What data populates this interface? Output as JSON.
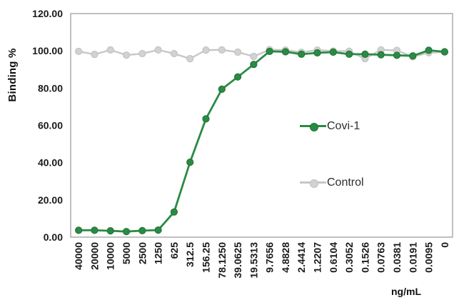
{
  "chart_data": {
    "type": "line",
    "title": "",
    "xlabel": "ng/mL",
    "ylabel": "Binding %",
    "ylim": [
      0,
      120
    ],
    "grid": false,
    "legend_position": "inside-right",
    "y_ticks": [
      {
        "label": "0.00",
        "value": 0
      },
      {
        "label": "20.00",
        "value": 20
      },
      {
        "label": "40.00",
        "value": 40
      },
      {
        "label": "60.00",
        "value": 60
      },
      {
        "label": "80.00",
        "value": 80
      },
      {
        "label": "100.00",
        "value": 100
      },
      {
        "label": "120.00",
        "value": 120
      }
    ],
    "categories": [
      "40000",
      "20000",
      "10000",
      "5000",
      "2500",
      "1250",
      "625",
      "312.5",
      "156.25",
      "78.1250",
      "39.0625",
      "19.5313",
      "9.7656",
      "4.8828",
      "2.4414",
      "1.2207",
      "0.6104",
      "0.3052",
      "0.1526",
      "0.0763",
      "0.0381",
      "0.0191",
      "0.0095",
      "0"
    ],
    "series": [
      {
        "name": "Covi-1",
        "color": "#2b8a44",
        "marker_fill": "#2b8a44",
        "marker_stroke": "#1f7336",
        "line_width": 2.8,
        "values": [
          3.7,
          3.7,
          3.4,
          3.0,
          3.5,
          3.8,
          13.5,
          40.2,
          63.5,
          79.4,
          86.0,
          92.7,
          99.7,
          99.5,
          98.2,
          98.9,
          99.3,
          98.2,
          98.2,
          97.9,
          97.6,
          97.3,
          100.3,
          99.5
        ]
      },
      {
        "name": "Control",
        "color": "#c7c7c7",
        "marker_fill": "#d2d2d2",
        "marker_stroke": "#bfbfbf",
        "line_width": 2.4,
        "values": [
          99.7,
          98.1,
          100.5,
          97.7,
          98.5,
          100.5,
          98.5,
          95.8,
          100.4,
          100.5,
          99.3,
          97.0,
          100.6,
          100.4,
          99.2,
          100.4,
          99.9,
          99.8,
          95.8,
          100.5,
          100.2,
          96.8,
          99.0,
          99.3
        ]
      }
    ],
    "colors": {
      "plot_border": "#a6a6a6",
      "tick_text": "#1a1a1a"
    }
  }
}
